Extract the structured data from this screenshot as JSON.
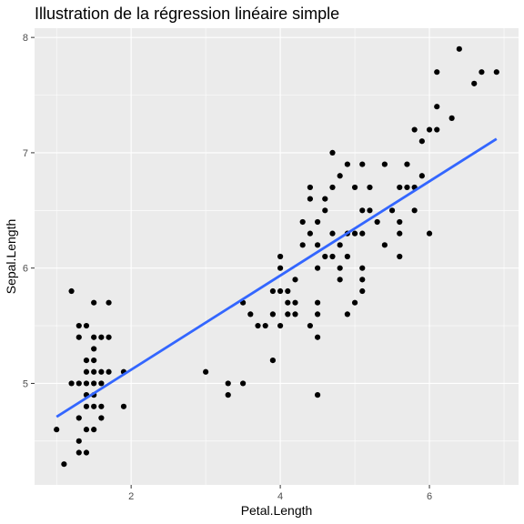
{
  "colors": {
    "panel_background": "#ebebeb",
    "grid_major": "#ffffff",
    "point": "#000000",
    "regression_line": "#3366ff"
  },
  "chart_data": {
    "type": "scatter",
    "title": "Illustration de la régression linéaire simple",
    "xlabel": "Petal.Length",
    "ylabel": "Sepal.Length",
    "xlim": [
      0.705,
      7.195
    ],
    "ylim": [
      4.12,
      8.08
    ],
    "x_ticks": [
      2,
      4,
      6
    ],
    "y_ticks": [
      5,
      6,
      7,
      8
    ],
    "x_tick_labels": [
      "2",
      "4",
      "6"
    ],
    "y_tick_labels": [
      "5",
      "6",
      "7",
      "8"
    ],
    "grid": true,
    "points": [
      [
        1.0,
        4.6
      ],
      [
        1.1,
        4.3
      ],
      [
        1.2,
        5.8
      ],
      [
        1.2,
        5.0
      ],
      [
        1.3,
        5.5
      ],
      [
        1.3,
        5.4
      ],
      [
        1.3,
        5.0
      ],
      [
        1.3,
        4.7
      ],
      [
        1.3,
        4.5
      ],
      [
        1.3,
        4.4
      ],
      [
        1.4,
        5.5
      ],
      [
        1.4,
        5.2
      ],
      [
        1.4,
        5.1
      ],
      [
        1.4,
        5.0
      ],
      [
        1.4,
        4.9
      ],
      [
        1.4,
        4.8
      ],
      [
        1.4,
        4.6
      ],
      [
        1.4,
        4.4
      ],
      [
        1.5,
        5.7
      ],
      [
        1.5,
        5.4
      ],
      [
        1.5,
        5.3
      ],
      [
        1.5,
        5.2
      ],
      [
        1.5,
        5.1
      ],
      [
        1.5,
        5.0
      ],
      [
        1.5,
        4.9
      ],
      [
        1.5,
        4.8
      ],
      [
        1.5,
        4.6
      ],
      [
        1.6,
        5.4
      ],
      [
        1.6,
        5.1
      ],
      [
        1.6,
        5.0
      ],
      [
        1.6,
        4.8
      ],
      [
        1.6,
        4.7
      ],
      [
        1.7,
        5.7
      ],
      [
        1.7,
        5.4
      ],
      [
        1.7,
        5.1
      ],
      [
        1.9,
        5.1
      ],
      [
        1.9,
        4.8
      ],
      [
        3.0,
        5.1
      ],
      [
        3.3,
        5.0
      ],
      [
        3.3,
        4.9
      ],
      [
        3.5,
        5.7
      ],
      [
        3.5,
        5.0
      ],
      [
        3.6,
        5.6
      ],
      [
        3.7,
        5.5
      ],
      [
        3.8,
        5.5
      ],
      [
        3.9,
        5.8
      ],
      [
        3.9,
        5.6
      ],
      [
        3.9,
        5.2
      ],
      [
        4.0,
        6.1
      ],
      [
        4.0,
        6.0
      ],
      [
        4.0,
        5.8
      ],
      [
        4.0,
        5.5
      ],
      [
        4.1,
        5.8
      ],
      [
        4.1,
        5.7
      ],
      [
        4.1,
        5.6
      ],
      [
        4.2,
        5.9
      ],
      [
        4.2,
        5.7
      ],
      [
        4.2,
        5.6
      ],
      [
        4.3,
        6.4
      ],
      [
        4.3,
        6.2
      ],
      [
        4.4,
        6.7
      ],
      [
        4.4,
        6.6
      ],
      [
        4.4,
        6.3
      ],
      [
        4.4,
        5.5
      ],
      [
        4.5,
        6.4
      ],
      [
        4.5,
        6.2
      ],
      [
        4.5,
        6.0
      ],
      [
        4.5,
        5.7
      ],
      [
        4.5,
        5.6
      ],
      [
        4.5,
        5.4
      ],
      [
        4.5,
        4.9
      ],
      [
        4.6,
        6.6
      ],
      [
        4.6,
        6.5
      ],
      [
        4.6,
        6.1
      ],
      [
        4.7,
        7.0
      ],
      [
        4.7,
        6.7
      ],
      [
        4.7,
        6.3
      ],
      [
        4.7,
        6.1
      ],
      [
        4.8,
        6.8
      ],
      [
        4.8,
        6.2
      ],
      [
        4.8,
        6.0
      ],
      [
        4.8,
        5.9
      ],
      [
        4.9,
        6.9
      ],
      [
        4.9,
        6.3
      ],
      [
        4.9,
        6.1
      ],
      [
        4.9,
        5.6
      ],
      [
        5.0,
        6.7
      ],
      [
        5.0,
        6.3
      ],
      [
        5.0,
        5.7
      ],
      [
        5.1,
        6.9
      ],
      [
        5.1,
        6.5
      ],
      [
        5.1,
        6.3
      ],
      [
        5.1,
        6.0
      ],
      [
        5.1,
        5.9
      ],
      [
        5.1,
        5.8
      ],
      [
        5.2,
        6.7
      ],
      [
        5.2,
        6.5
      ],
      [
        5.3,
        6.4
      ],
      [
        5.4,
        6.9
      ],
      [
        5.4,
        6.2
      ],
      [
        5.5,
        6.5
      ],
      [
        5.6,
        6.7
      ],
      [
        5.6,
        6.4
      ],
      [
        5.6,
        6.3
      ],
      [
        5.6,
        6.1
      ],
      [
        5.7,
        6.9
      ],
      [
        5.7,
        6.7
      ],
      [
        5.8,
        7.2
      ],
      [
        5.8,
        6.7
      ],
      [
        5.8,
        6.5
      ],
      [
        5.9,
        7.1
      ],
      [
        5.9,
        6.8
      ],
      [
        6.0,
        7.2
      ],
      [
        6.0,
        6.3
      ],
      [
        6.1,
        7.7
      ],
      [
        6.1,
        7.4
      ],
      [
        6.1,
        7.2
      ],
      [
        6.3,
        7.3
      ],
      [
        6.4,
        7.9
      ],
      [
        6.6,
        7.6
      ],
      [
        6.7,
        7.7
      ],
      [
        6.9,
        7.7
      ]
    ],
    "regression_line": {
      "x": [
        1.0,
        6.9
      ],
      "y": [
        4.71,
        7.12
      ]
    }
  }
}
